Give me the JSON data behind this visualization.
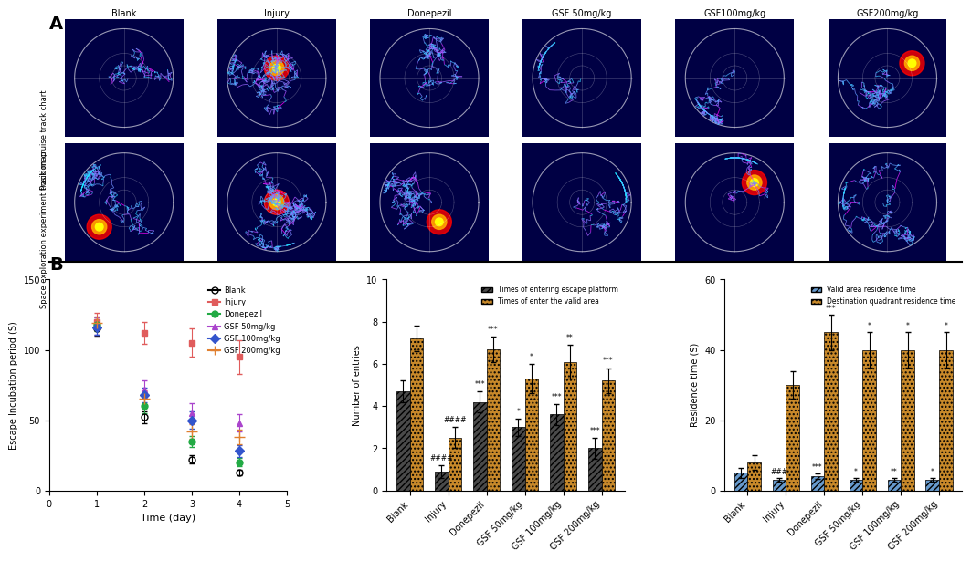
{
  "panel_A_row_labels": [
    "Position cruise track chart",
    "Space exploration experiment track map"
  ],
  "panel_A_col_labels": [
    "Blank",
    "Injury",
    "Donepezil",
    "GSF 50mg/kg",
    "GSF100mg/kg",
    "GSF200mg/kg"
  ],
  "line_data": {
    "days": [
      1,
      2,
      3,
      4
    ],
    "groups": {
      "Blank": {
        "means": [
          115,
          52,
          22,
          13
        ],
        "sems": [
          5,
          4,
          3,
          2
        ],
        "color": "#000000",
        "marker": "o",
        "fillstyle": "none"
      },
      "Injury": {
        "means": [
          120,
          112,
          105,
          95
        ],
        "sems": [
          6,
          8,
          10,
          12
        ],
        "color": "#e05c5c",
        "marker": "s",
        "fillstyle": "full"
      },
      "Donepezil": {
        "means": [
          118,
          60,
          35,
          20
        ],
        "sems": [
          5,
          5,
          4,
          3
        ],
        "color": "#22aa44",
        "marker": "o",
        "fillstyle": "full"
      },
      "GSF 50mg/kg": {
        "means": [
          117,
          72,
          55,
          48
        ],
        "sems": [
          6,
          6,
          7,
          6
        ],
        "color": "#aa44cc",
        "marker": "^",
        "fillstyle": "full"
      },
      "GSF 100mg/kg": {
        "means": [
          116,
          68,
          50,
          28
        ],
        "sems": [
          5,
          5,
          6,
          4
        ],
        "color": "#3355cc",
        "marker": "D",
        "fillstyle": "full"
      },
      "GSF 200mg/kg": {
        "means": [
          119,
          65,
          42,
          38
        ],
        "sems": [
          5,
          6,
          5,
          5
        ],
        "color": "#e08030",
        "marker": "+",
        "fillstyle": "full"
      }
    }
  },
  "bar_entries_data": {
    "categories": [
      "Blank",
      "Injury",
      "Donepezil",
      "GSF 50mg/kg",
      "GSF 100mg/kg",
      "GSF 200mg/kg"
    ],
    "escape_platform": [
      4.7,
      0.9,
      4.2,
      3.0,
      3.6,
      2.0
    ],
    "escape_platform_sem": [
      0.5,
      0.3,
      0.5,
      0.4,
      0.5,
      0.5
    ],
    "valid_area": [
      7.2,
      2.5,
      6.7,
      5.3,
      6.1,
      5.2
    ],
    "valid_area_sem": [
      0.6,
      0.5,
      0.6,
      0.7,
      0.8,
      0.6
    ],
    "escape_annotations": [
      "",
      "####",
      "***",
      "*",
      "***",
      "***"
    ],
    "valid_annotations": [
      "",
      "####",
      "***",
      "*",
      "**",
      "***"
    ],
    "bar_color_dark": "#4a4a4a",
    "bar_color_orange": "#c8892a",
    "ylim": [
      0,
      10
    ]
  },
  "bar_residence_data": {
    "categories": [
      "Blank",
      "Injury",
      "Donepezil",
      "GSF 50mg/kg",
      "GSF 100mg/kg",
      "GSF 200mg/kg"
    ],
    "valid_area_time": [
      5,
      3,
      4,
      3,
      3,
      3
    ],
    "valid_area_time_sem": [
      1.5,
      0.5,
      0.8,
      0.5,
      0.5,
      0.5
    ],
    "dest_quadrant": [
      8,
      30,
      45,
      40,
      40,
      40
    ],
    "dest_quadrant_sem": [
      2,
      4,
      5,
      5,
      5,
      5
    ],
    "valid_annotations": [
      "",
      "###",
      "***",
      "*",
      "**",
      "*"
    ],
    "dest_annotations": [
      "",
      "",
      "***",
      "*",
      "*",
      "*"
    ],
    "bar_color_blue": "#6699cc",
    "bar_color_orange": "#c8892a",
    "ylim": [
      0,
      60
    ]
  },
  "bg_color": "#ffffff",
  "panel_bg_color": "#000044"
}
